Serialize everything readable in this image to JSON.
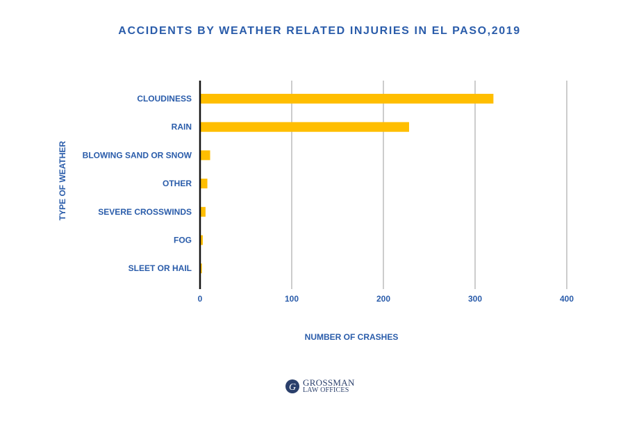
{
  "chart_data": {
    "type": "bar",
    "orientation": "horizontal",
    "title": "ACCIDENTS BY WEATHER RELATED INJURIES IN EL PASO,2019",
    "xlabel": "NUMBER OF CRASHES",
    "ylabel": "TYPE OF WEATHER",
    "categories": [
      "CLOUDINESS",
      "RAIN",
      "BLOWING SAND OR SNOW",
      "OTHER",
      "SEVERE CROSSWINDS",
      "FOG",
      "SLEET OR HAIL"
    ],
    "values": [
      320,
      228,
      11,
      8,
      6,
      3,
      2
    ],
    "xlim": [
      0,
      400
    ],
    "xticks": [
      0,
      100,
      200,
      300,
      400
    ],
    "grid": "vertical",
    "bar_color": "#ffbe00",
    "text_color": "#2a5caa"
  },
  "logo": {
    "line1": "GROSSMAN",
    "line2": "LAW OFFICES",
    "mark": "G"
  }
}
